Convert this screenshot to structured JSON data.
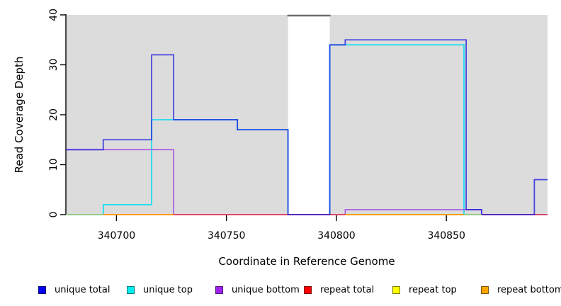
{
  "chart_data": {
    "type": "line",
    "subtype": "step-coverage-plot",
    "xlabel": "Coordinate in Reference Genome",
    "ylabel": "Read Coverage Depth",
    "xlim": [
      340677,
      340896
    ],
    "ylim": [
      0,
      40
    ],
    "x_ticks": [
      340700,
      340750,
      340800,
      340850
    ],
    "y_ticks": [
      0,
      10,
      20,
      30,
      40
    ],
    "grid": false,
    "background_regions": [
      {
        "x1": 340677,
        "x2": 340778,
        "color": "#DCDCDC"
      },
      {
        "x1": 340797,
        "x2": 340896,
        "color": "#DCDCDC"
      }
    ],
    "gap_region": {
      "x1": 340778,
      "x2": 340797,
      "top_border_color": "#6E6E6E"
    },
    "series": [
      {
        "id": "repeat_top",
        "name": "repeat top",
        "color": "#F0E000",
        "width": 1.6,
        "opacity": 1,
        "segments": [
          {
            "steps": [
              [
                340677,
                0
              ]
            ],
            "x_end": 340896
          }
        ]
      },
      {
        "id": "unique_top",
        "name": "unique top",
        "color": "#00E0EE",
        "width": 1.6,
        "opacity": 1,
        "segments": [
          {
            "steps": [
              [
                340677,
                0
              ],
              [
                340694,
                2
              ],
              [
                340716,
                19
              ],
              [
                340755,
                17
              ],
              [
                340778,
                0
              ],
              [
                340797,
                34
              ],
              [
                340858,
                0
              ]
            ],
            "x_end": 340896
          }
        ]
      },
      {
        "id": "unique_bottom",
        "name": "unique bottom",
        "color": "#AA55E0",
        "width": 1.6,
        "opacity": 1,
        "segments": [
          {
            "steps": [
              [
                340677,
                13
              ],
              [
                340726,
                0
              ],
              [
                340804,
                1
              ],
              [
                340866,
                0
              ]
            ],
            "x_end": 340896
          }
        ]
      },
      {
        "id": "repeat_total",
        "name": "repeat total",
        "color": "#E62E50",
        "width": 1.6,
        "opacity": 1,
        "segments": [
          {
            "steps": [
              [
                340677,
                0
              ]
            ],
            "x_end": 340896
          }
        ]
      },
      {
        "id": "repeat_bottom",
        "name": "repeat bottom",
        "color": "#FF9E00",
        "width": 1.8,
        "opacity": 1,
        "segments": [
          {
            "steps": [
              [
                340694,
                0
              ]
            ],
            "x_end": 340726
          },
          {
            "steps": [
              [
                340804,
                0
              ]
            ],
            "x_end": 340858
          }
        ]
      },
      {
        "id": "unique_total",
        "name": "unique total",
        "color": "#1515E0",
        "width": 1.8,
        "opacity": 0.75,
        "segments": [
          {
            "steps": [
              [
                340677,
                13
              ],
              [
                340694,
                15
              ],
              [
                340716,
                32
              ],
              [
                340726,
                19
              ],
              [
                340755,
                17
              ],
              [
                340778,
                0
              ],
              [
                340797,
                34
              ],
              [
                340804,
                35
              ],
              [
                340859,
                1
              ],
              [
                340866,
                0
              ],
              [
                340890,
                7
              ]
            ],
            "x_end": 340896
          }
        ]
      }
    ],
    "overlap_segments": {
      "color": "#8BE28B",
      "width": 1.6,
      "y": 0,
      "regions": [
        {
          "x1": 340677,
          "x2": 340694
        },
        {
          "x1": 340858,
          "x2": 340866
        }
      ]
    }
  },
  "legend": {
    "entries": [
      {
        "label": "unique total",
        "color": "#0000EE"
      },
      {
        "label": "unique top",
        "color": "#00EEEE"
      },
      {
        "label": "unique bottom",
        "color": "#A020F0"
      },
      {
        "label": "repeat total",
        "color": "#FF0000"
      },
      {
        "label": "repeat top",
        "color": "#FFFF00"
      },
      {
        "label": "repeat bottom",
        "color": "#FFA500"
      }
    ]
  }
}
